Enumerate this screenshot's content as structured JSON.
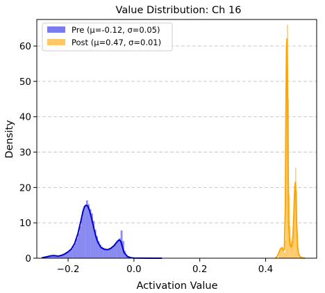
{
  "chart_data": {
    "type": "histogram-kde",
    "title": "Value Distribution: Ch 16",
    "xlabel": "Activation Value",
    "ylabel": "Density",
    "xlim": [
      -0.295,
      0.555
    ],
    "ylim": [
      0,
      67.5
    ],
    "xticks": [
      -0.2,
      0.0,
      0.2,
      0.4
    ],
    "xtick_labels": [
      "−0.2",
      "0.0",
      "0.2",
      "0.4"
    ],
    "yticks": [
      0,
      10,
      20,
      30,
      40,
      50,
      60
    ],
    "ytick_labels": [
      "0",
      "10",
      "20",
      "30",
      "40",
      "50",
      "60"
    ],
    "grid": "y-dashed",
    "legend_position": "top-left",
    "series": [
      {
        "name": "Pre (μ=-0.12, σ=0.05)",
        "bar_color": "#7b7bf0",
        "line_color": "#0000cd",
        "bin_width": 0.005,
        "bins": [
          [
            -0.27,
            0.3
          ],
          [
            -0.265,
            0.4
          ],
          [
            -0.26,
            0.5
          ],
          [
            -0.255,
            0.6
          ],
          [
            -0.25,
            0.8
          ],
          [
            -0.245,
            0.9
          ],
          [
            -0.24,
            0.8
          ],
          [
            -0.235,
            0.7
          ],
          [
            -0.23,
            0.6
          ],
          [
            -0.225,
            0.7
          ],
          [
            -0.22,
            0.8
          ],
          [
            -0.215,
            1.0
          ],
          [
            -0.21,
            1.3
          ],
          [
            -0.205,
            1.6
          ],
          [
            -0.2,
            2.0
          ],
          [
            -0.195,
            2.3
          ],
          [
            -0.19,
            2.6
          ],
          [
            -0.185,
            3.3
          ],
          [
            -0.18,
            4.2
          ],
          [
            -0.175,
            5.5
          ],
          [
            -0.17,
            7.0
          ],
          [
            -0.165,
            9.0
          ],
          [
            -0.16,
            11.5
          ],
          [
            -0.155,
            13.5
          ],
          [
            -0.15,
            14.6
          ],
          [
            -0.145,
            16.3
          ],
          [
            -0.14,
            15.2
          ],
          [
            -0.135,
            13.8
          ],
          [
            -0.13,
            12.6
          ],
          [
            -0.125,
            10.5
          ],
          [
            -0.12,
            8.0
          ],
          [
            -0.115,
            6.2
          ],
          [
            -0.11,
            4.8
          ],
          [
            -0.105,
            3.8
          ],
          [
            -0.1,
            3.2
          ],
          [
            -0.095,
            2.9
          ],
          [
            -0.09,
            2.7
          ],
          [
            -0.085,
            2.6
          ],
          [
            -0.08,
            2.6
          ],
          [
            -0.075,
            2.8
          ],
          [
            -0.07,
            3.1
          ],
          [
            -0.065,
            3.5
          ],
          [
            -0.06,
            4.0
          ],
          [
            -0.055,
            4.5
          ],
          [
            -0.05,
            5.0
          ],
          [
            -0.045,
            5.6
          ],
          [
            -0.04,
            7.8
          ],
          [
            -0.035,
            4.8
          ],
          [
            -0.03,
            2.0
          ],
          [
            -0.025,
            0.9
          ],
          [
            -0.02,
            0.4
          ],
          [
            -0.015,
            0.2
          ]
        ],
        "kde_x": [
          -0.28,
          -0.265,
          -0.25,
          -0.24,
          -0.23,
          -0.22,
          -0.21,
          -0.2,
          -0.19,
          -0.18,
          -0.17,
          -0.16,
          -0.155,
          -0.15,
          -0.145,
          -0.14,
          -0.135,
          -0.13,
          -0.125,
          -0.12,
          -0.115,
          -0.11,
          -0.1,
          -0.09,
          -0.08,
          -0.07,
          -0.06,
          -0.05,
          -0.045,
          -0.04,
          -0.035,
          -0.03,
          -0.02,
          -0.01,
          0.0,
          0.02,
          0.05,
          0.085
        ],
        "kde_y": [
          0.1,
          0.4,
          0.7,
          0.7,
          0.6,
          0.8,
          1.2,
          1.8,
          2.6,
          4.2,
          7.0,
          11.0,
          13.2,
          14.6,
          15.0,
          14.7,
          13.5,
          11.8,
          9.8,
          7.8,
          6.0,
          4.6,
          3.0,
          2.5,
          2.4,
          2.8,
          3.6,
          4.8,
          5.2,
          4.8,
          3.2,
          1.6,
          0.5,
          0.15,
          0.05,
          0.01,
          0.0,
          0.0
        ]
      },
      {
        "name": "Post (μ=0.47, σ=0.01)",
        "bar_color": "#ffc766",
        "line_color": "#ffa500",
        "bin_width": 0.0025,
        "bins": [
          [
            0.44,
            1.0
          ],
          [
            0.4425,
            2.0
          ],
          [
            0.445,
            2.6
          ],
          [
            0.4475,
            3.0
          ],
          [
            0.45,
            3.0
          ],
          [
            0.4525,
            2.4
          ],
          [
            0.455,
            1.6
          ],
          [
            0.4575,
            1.5
          ],
          [
            0.46,
            5.0
          ],
          [
            0.4625,
            60.0
          ],
          [
            0.465,
            66.0
          ],
          [
            0.4675,
            45.0
          ],
          [
            0.47,
            18.0
          ],
          [
            0.4725,
            9.0
          ],
          [
            0.475,
            5.5
          ],
          [
            0.4775,
            4.5
          ],
          [
            0.48,
            4.5
          ],
          [
            0.4825,
            6.0
          ],
          [
            0.485,
            10.0
          ],
          [
            0.4875,
            19.0
          ],
          [
            0.49,
            25.5
          ],
          [
            0.4925,
            19.0
          ],
          [
            0.495,
            7.0
          ],
          [
            0.4975,
            2.4
          ],
          [
            0.5,
            1.2
          ],
          [
            0.5025,
            0.6
          ],
          [
            0.505,
            0.4
          ],
          [
            0.5075,
            0.3
          ]
        ],
        "kde_x": [
          0.43,
          0.435,
          0.44,
          0.445,
          0.45,
          0.454,
          0.457,
          0.46,
          0.462,
          0.4635,
          0.465,
          0.4665,
          0.468,
          0.47,
          0.473,
          0.476,
          0.479,
          0.482,
          0.485,
          0.487,
          0.489,
          0.4905,
          0.492,
          0.494,
          0.497,
          0.5,
          0.505,
          0.51,
          0.515,
          0.52
        ],
        "kde_y": [
          0.0,
          0.5,
          1.5,
          2.6,
          3.0,
          2.2,
          2.5,
          15.0,
          45.0,
          60.0,
          62.0,
          50.0,
          28.0,
          10.0,
          4.5,
          3.2,
          3.3,
          5.0,
          10.0,
          16.5,
          20.5,
          21.5,
          18.0,
          10.0,
          3.5,
          1.2,
          0.4,
          0.15,
          0.05,
          0.0
        ]
      }
    ]
  }
}
